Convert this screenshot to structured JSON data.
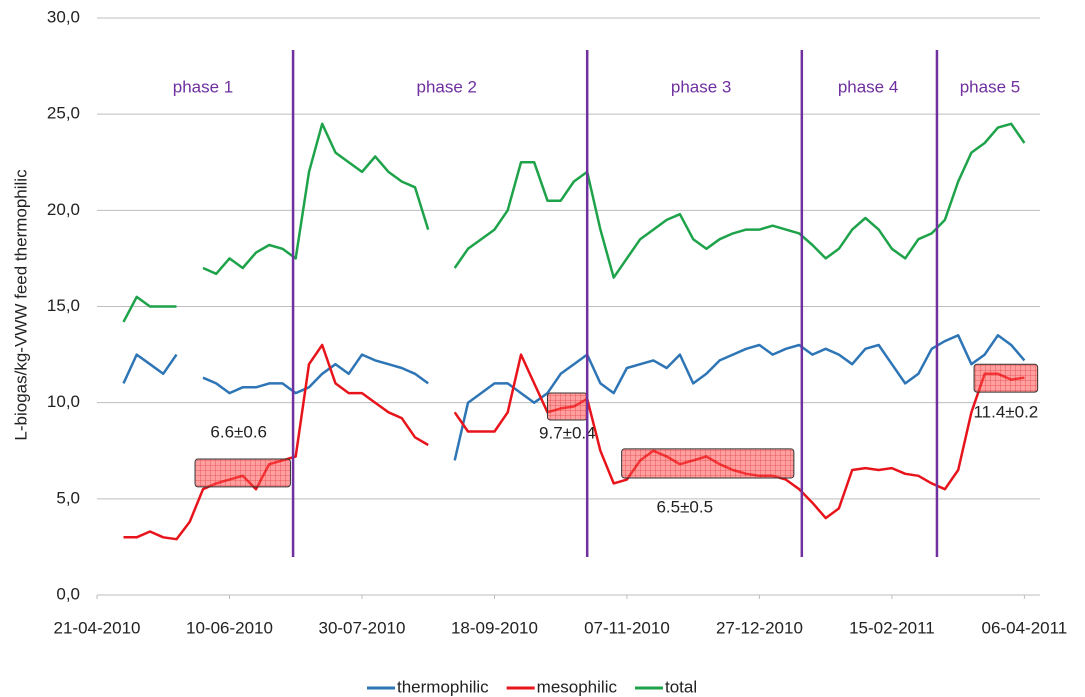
{
  "chart_data": {
    "type": "line",
    "ylabel": "L-biogas/kg-VWW feed thermophilic",
    "x": [
      "2010-05-01",
      "2010-05-06",
      "2010-05-11",
      "2010-05-16",
      "2010-05-21",
      "2010-05-26",
      "2010-05-31",
      "2010-06-05",
      "2010-06-10",
      "2010-06-15",
      "2010-06-20",
      "2010-06-25",
      "2010-06-30",
      "2010-07-05",
      "2010-07-10",
      "2010-07-15",
      "2010-07-20",
      "2010-07-25",
      "2010-07-30",
      "2010-08-04",
      "2010-08-09",
      "2010-08-14",
      "2010-08-19",
      "2010-08-24",
      "2010-08-29",
      "2010-09-03",
      "2010-09-08",
      "2010-09-13",
      "2010-09-18",
      "2010-09-23",
      "2010-09-28",
      "2010-10-03",
      "2010-10-08",
      "2010-10-13",
      "2010-10-18",
      "2010-10-23",
      "2010-10-28",
      "2010-11-02",
      "2010-11-07",
      "2010-11-12",
      "2010-11-17",
      "2010-11-22",
      "2010-11-27",
      "2010-12-02",
      "2010-12-07",
      "2010-12-12",
      "2010-12-17",
      "2010-12-22",
      "2010-12-27",
      "2011-01-01",
      "2011-01-06",
      "2011-01-11",
      "2011-01-16",
      "2011-01-21",
      "2011-01-26",
      "2011-01-31",
      "2011-02-05",
      "2011-02-10",
      "2011-02-15",
      "2011-02-20",
      "2011-02-25",
      "2011-03-02",
      "2011-03-07",
      "2011-03-12",
      "2011-03-17",
      "2011-03-22",
      "2011-03-27",
      "2011-04-01",
      "2011-04-06"
    ],
    "series": [
      {
        "name": "thermophilic",
        "color": "#2e75b6",
        "values": [
          11.0,
          12.5,
          12.0,
          11.5,
          12.5,
          null,
          11.3,
          11.0,
          10.5,
          10.8,
          10.8,
          11.0,
          11.0,
          10.5,
          10.8,
          11.5,
          12.0,
          11.5,
          12.5,
          12.2,
          12.0,
          11.8,
          11.5,
          11.0,
          null,
          7.0,
          10.0,
          10.5,
          11.0,
          11.0,
          10.5,
          10.0,
          10.5,
          11.5,
          12.0,
          12.5,
          11.0,
          10.5,
          11.8,
          12.0,
          12.2,
          11.8,
          12.5,
          11.0,
          11.5,
          12.2,
          12.5,
          12.8,
          13.0,
          12.5,
          12.8,
          13.0,
          12.5,
          12.8,
          12.5,
          12.0,
          12.8,
          13.0,
          12.0,
          11.0,
          11.5,
          12.8,
          13.2,
          13.5,
          12.0,
          12.5,
          13.5,
          13.0,
          12.2
        ]
      },
      {
        "name": "mesophilic",
        "color": "#e8141b",
        "values": [
          3.0,
          3.0,
          3.3,
          3.0,
          2.9,
          3.8,
          5.5,
          5.8,
          6.0,
          6.2,
          5.5,
          6.8,
          7.0,
          7.2,
          12.0,
          13.0,
          11.0,
          10.5,
          10.5,
          10.0,
          9.5,
          9.2,
          8.2,
          7.8,
          null,
          9.5,
          8.5,
          8.5,
          8.5,
          9.5,
          12.5,
          11.0,
          9.5,
          9.7,
          9.8,
          10.2,
          7.5,
          5.8,
          6.0,
          7.0,
          7.5,
          7.2,
          6.8,
          7.0,
          7.2,
          6.8,
          6.5,
          6.3,
          6.2,
          6.2,
          6.0,
          5.5,
          4.8,
          4.0,
          4.5,
          6.5,
          6.6,
          6.5,
          6.6,
          6.3,
          6.2,
          5.8,
          5.5,
          6.5,
          9.5,
          11.5,
          11.5,
          11.2,
          11.3
        ]
      },
      {
        "name": "total",
        "color": "#1ea34a",
        "values": [
          14.2,
          15.5,
          15.0,
          15.0,
          15.0,
          null,
          17.0,
          16.7,
          17.5,
          17.0,
          17.8,
          18.2,
          18.0,
          17.5,
          22.0,
          24.5,
          23.0,
          22.5,
          22.0,
          22.8,
          22.0,
          21.5,
          21.2,
          19.0,
          null,
          17.0,
          18.0,
          18.5,
          19.0,
          20.0,
          22.5,
          22.5,
          20.5,
          20.5,
          21.5,
          22.0,
          19.0,
          16.5,
          17.5,
          18.5,
          19.0,
          19.5,
          19.8,
          18.5,
          18.0,
          18.5,
          18.8,
          19.0,
          19.0,
          19.2,
          19.0,
          18.8,
          18.2,
          17.5,
          18.0,
          19.0,
          19.6,
          19.0,
          18.0,
          17.5,
          18.5,
          18.8,
          19.5,
          21.5,
          23.0,
          23.5,
          24.3,
          24.5,
          23.5
        ]
      }
    ],
    "xlim": [
      "2010-04-21",
      "2011-04-10"
    ],
    "xticks": [
      {
        "value": "2010-04-21",
        "label": "21-04-2010"
      },
      {
        "value": "2010-06-10",
        "label": "10-06-2010"
      },
      {
        "value": "2010-07-30",
        "label": "30-07-2010"
      },
      {
        "value": "2010-09-18",
        "label": "18-09-2010"
      },
      {
        "value": "2010-11-07",
        "label": "07-11-2010"
      },
      {
        "value": "2010-12-27",
        "label": "27-12-2010"
      },
      {
        "value": "2011-02-15",
        "label": "15-02-2011"
      },
      {
        "value": "2011-04-06",
        "label": "06-04-2011"
      }
    ],
    "ylim": [
      0,
      30
    ],
    "yticks": [
      {
        "value": 0,
        "label": "0,0"
      },
      {
        "value": 5,
        "label": "5,0"
      },
      {
        "value": 10,
        "label": "10,0"
      },
      {
        "value": 15,
        "label": "15,0"
      },
      {
        "value": 20,
        "label": "20,0"
      },
      {
        "value": 25,
        "label": "25,0"
      },
      {
        "value": 30,
        "label": "30,0"
      }
    ],
    "grid": true,
    "legend": "bottom",
    "phase_lines": [
      "2010-07-04",
      "2010-10-23",
      "2011-01-12",
      "2011-03-04"
    ],
    "phases": [
      {
        "label": "phase 1",
        "x": "2010-05-31"
      },
      {
        "label": "phase 2",
        "x": "2010-08-31"
      },
      {
        "label": "phase 3",
        "x": "2010-12-05"
      },
      {
        "label": "phase 4",
        "x": "2011-02-06"
      },
      {
        "label": "phase 5",
        "x": "2011-03-24"
      }
    ],
    "phase_color": "#7030a0",
    "annotations": [
      {
        "text": "6.6±0.6",
        "x": [
          "2010-05-28",
          "2010-07-03"
        ],
        "y": [
          5.62,
          7.07
        ]
      },
      {
        "text": "9.7±0.4",
        "x": [
          "2010-10-08",
          "2010-10-23"
        ],
        "y": [
          9.1,
          10.5
        ]
      },
      {
        "text": "6.5±0.5",
        "x": [
          "2010-11-05",
          "2011-01-09"
        ],
        "y": [
          6.08,
          7.6
        ]
      },
      {
        "text": "11.4±0.2",
        "x": [
          "2011-03-18",
          "2011-04-11"
        ],
        "y": [
          10.55,
          12.0
        ]
      }
    ]
  }
}
